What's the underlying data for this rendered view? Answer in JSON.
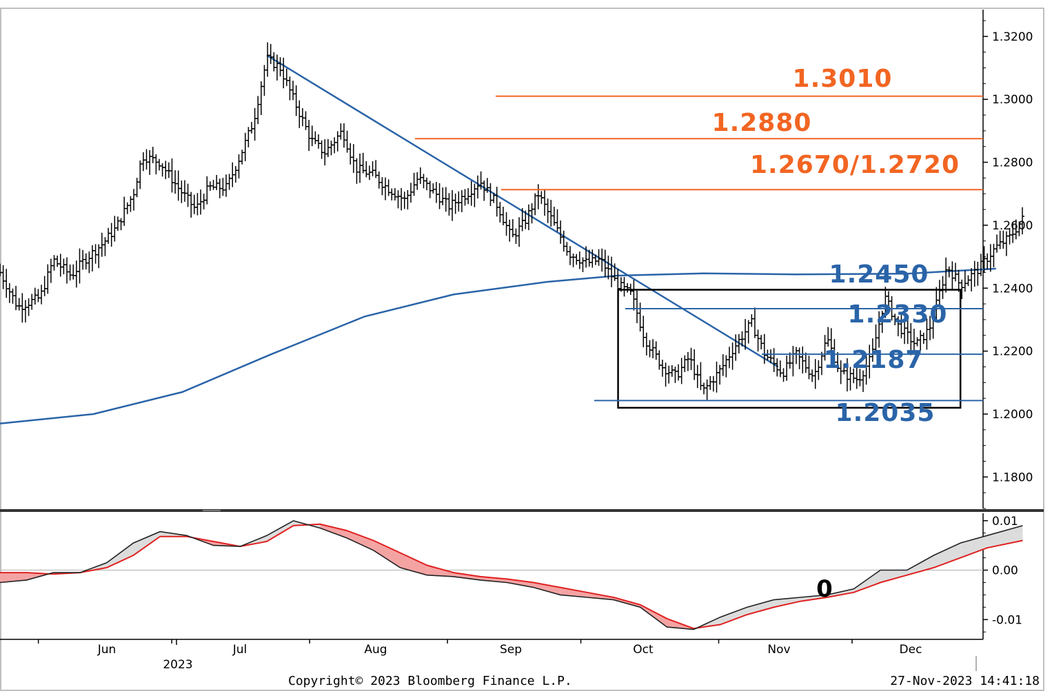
{
  "chart_data": [
    {
      "type": "ohlc",
      "title": "",
      "ylim": [
        1.17,
        1.3285
      ],
      "y_ticks": [
        "1.3200",
        "1.3000",
        "1.2800",
        "1.2600",
        "1.2400",
        "1.2200",
        "1.2000",
        "1.1800"
      ],
      "x_tick_labels": [
        "Jun",
        "Jul",
        "Aug",
        "Sep",
        "Oct",
        "Nov",
        "Dec"
      ],
      "year_label": "2023",
      "close_path": [
        [
          "2023-05-15",
          1.245
        ],
        [
          "2023-05-19",
          1.234
        ],
        [
          "2023-05-24",
          1.237
        ],
        [
          "2023-05-27",
          1.249
        ],
        [
          "2023-05-31",
          1.244
        ],
        [
          "2023-06-03",
          1.249
        ],
        [
          "2023-06-07",
          1.254
        ],
        [
          "2023-06-10",
          1.259
        ],
        [
          "2023-06-14",
          1.27
        ],
        [
          "2023-06-16",
          1.282
        ],
        [
          "2023-06-20",
          1.28
        ],
        [
          "2023-06-24",
          1.272
        ],
        [
          "2023-06-28",
          1.265
        ],
        [
          "2023-07-01",
          1.272
        ],
        [
          "2023-07-05",
          1.272
        ],
        [
          "2023-07-08",
          1.282
        ],
        [
          "2023-07-11",
          1.293
        ],
        [
          "2023-07-14",
          1.313
        ],
        [
          "2023-07-17",
          1.31
        ],
        [
          "2023-07-20",
          1.3
        ],
        [
          "2023-07-24",
          1.287
        ],
        [
          "2023-07-27",
          1.283
        ],
        [
          "2023-07-31",
          1.29
        ],
        [
          "2023-08-03",
          1.278
        ],
        [
          "2023-08-07",
          1.276
        ],
        [
          "2023-08-10",
          1.272
        ],
        [
          "2023-08-14",
          1.268
        ],
        [
          "2023-08-17",
          1.275
        ],
        [
          "2023-08-21",
          1.27
        ],
        [
          "2023-08-24",
          1.266
        ],
        [
          "2023-08-28",
          1.27
        ],
        [
          "2023-08-31",
          1.274
        ],
        [
          "2023-09-04",
          1.266
        ],
        [
          "2023-09-07",
          1.256
        ],
        [
          "2023-09-10",
          1.261
        ],
        [
          "2023-09-13",
          1.27
        ],
        [
          "2023-09-16",
          1.262
        ],
        [
          "2023-09-20",
          1.251
        ],
        [
          "2023-09-24",
          1.248
        ],
        [
          "2023-09-27",
          1.249
        ],
        [
          "2023-10-01",
          1.241
        ],
        [
          "2023-10-04",
          1.238
        ],
        [
          "2023-10-07",
          1.224
        ],
        [
          "2023-10-11",
          1.215
        ],
        [
          "2023-10-14",
          1.212
        ],
        [
          "2023-10-17",
          1.218
        ],
        [
          "2023-10-20",
          1.207
        ],
        [
          "2023-10-24",
          1.214
        ],
        [
          "2023-10-27",
          1.221
        ],
        [
          "2023-10-31",
          1.229
        ],
        [
          "2023-11-03",
          1.219
        ],
        [
          "2023-11-07",
          1.213
        ],
        [
          "2023-11-10",
          1.219
        ],
        [
          "2023-11-14",
          1.212
        ],
        [
          "2023-11-17",
          1.224
        ],
        [
          "2023-11-20",
          1.213
        ],
        [
          "2023-11-24",
          1.211
        ],
        [
          "2023-11-27",
          1.218
        ],
        [
          "2023-11-30",
          1.237
        ],
        [
          "2023-12-03",
          1.228
        ],
        [
          "2023-12-07",
          1.222
        ],
        [
          "2023-12-10",
          1.227
        ],
        [
          "2023-12-14",
          1.247
        ],
        [
          "2023-12-17",
          1.241
        ],
        [
          "2023-12-21",
          1.246
        ],
        [
          "2023-12-25",
          1.253
        ],
        [
          "2023-12-28",
          1.256
        ],
        [
          "2023-12-31",
          1.262
        ]
      ],
      "moving_average": [
        [
          "2023-05-15",
          1.197
        ],
        [
          "2023-06-05",
          1.2
        ],
        [
          "2023-06-25",
          1.207
        ],
        [
          "2023-07-15",
          1.219
        ],
        [
          "2023-08-05",
          1.231
        ],
        [
          "2023-08-25",
          1.238
        ],
        [
          "2023-09-15",
          1.242
        ],
        [
          "2023-10-01",
          1.244
        ],
        [
          "2023-10-20",
          1.2447
        ],
        [
          "2023-11-10",
          1.2444
        ],
        [
          "2023-12-05",
          1.2446
        ],
        [
          "2023-12-25",
          1.2462
        ]
      ],
      "downtrend_line": [
        [
          "2023-07-14",
          1.314
        ],
        [
          "2023-11-06",
          1.215
        ]
      ],
      "range_box": {
        "from": "2023-10-01",
        "to": "2023-12-17",
        "low": 1.202,
        "high": 1.2395
      },
      "levels": [
        {
          "label": "1.3010",
          "value": 1.301,
          "color": "#f26522"
        },
        {
          "label": "1.2880",
          "value": 1.2875,
          "color": "#f26522"
        },
        {
          "label": "1.2670/1.2720",
          "value": 1.2713,
          "color": "#f26522"
        },
        {
          "label": "1.2450",
          "value": 1.245,
          "color": "#2a64a8"
        },
        {
          "label": "1.2330",
          "value": 1.2335,
          "color": "#2a64a8"
        },
        {
          "label": "1.2187",
          "value": 1.219,
          "color": "#2a64a8"
        },
        {
          "label": "1.2035",
          "value": 1.2043,
          "color": "#2a64a8"
        }
      ]
    },
    {
      "type": "area",
      "ylim": [
        -0.014,
        0.0115
      ],
      "y_ticks": [
        "0.01",
        "0.00",
        "-0.01"
      ],
      "zero_label": "0",
      "series": [
        {
          "values": [
            [
              "2023-05-15",
              -0.0025
            ],
            [
              "2023-05-21",
              -0.002
            ],
            [
              "2023-05-27",
              -0.0005
            ],
            [
              "2023-06-02",
              -0.0005
            ],
            [
              "2023-06-08",
              0.0015
            ],
            [
              "2023-06-14",
              0.0055
            ],
            [
              "2023-06-20",
              0.0078
            ],
            [
              "2023-06-26",
              0.007
            ],
            [
              "2023-07-02",
              0.005
            ],
            [
              "2023-07-08",
              0.0048
            ],
            [
              "2023-07-14",
              0.007
            ],
            [
              "2023-07-20",
              0.01
            ],
            [
              "2023-07-26",
              0.0085
            ],
            [
              "2023-08-01",
              0.0065
            ],
            [
              "2023-08-07",
              0.004
            ],
            [
              "2023-08-13",
              0.0005
            ],
            [
              "2023-08-19",
              -0.001
            ],
            [
              "2023-08-25",
              -0.0013
            ],
            [
              "2023-08-31",
              -0.002
            ],
            [
              "2023-09-06",
              -0.0025
            ],
            [
              "2023-09-12",
              -0.0035
            ],
            [
              "2023-09-18",
              -0.005
            ],
            [
              "2023-09-24",
              -0.0055
            ],
            [
              "2023-09-30",
              -0.006
            ],
            [
              "2023-10-06",
              -0.0075
            ],
            [
              "2023-10-12",
              -0.0115
            ],
            [
              "2023-10-18",
              -0.012
            ],
            [
              "2023-10-24",
              -0.0095
            ],
            [
              "2023-10-30",
              -0.0075
            ],
            [
              "2023-11-05",
              -0.006
            ],
            [
              "2023-11-11",
              -0.0055
            ],
            [
              "2023-11-17",
              -0.005
            ],
            [
              "2023-11-23",
              -0.0038
            ],
            [
              "2023-11-29",
              0.0
            ],
            [
              "2023-12-05",
              0.0
            ],
            [
              "2023-12-11",
              0.003
            ],
            [
              "2023-12-17",
              0.0055
            ],
            [
              "2023-12-23",
              0.007
            ],
            [
              "2023-12-31",
              0.009
            ]
          ]
        },
        {
          "values": [
            [
              "2023-05-15",
              -0.0005
            ],
            [
              "2023-05-21",
              -0.0005
            ],
            [
              "2023-05-27",
              -0.0008
            ],
            [
              "2023-06-02",
              -0.0005
            ],
            [
              "2023-06-08",
              0.0005
            ],
            [
              "2023-06-14",
              0.003
            ],
            [
              "2023-06-20",
              0.0068
            ],
            [
              "2023-06-26",
              0.0068
            ],
            [
              "2023-07-02",
              0.0058
            ],
            [
              "2023-07-08",
              0.0048
            ],
            [
              "2023-07-14",
              0.0058
            ],
            [
              "2023-07-20",
              0.009
            ],
            [
              "2023-07-26",
              0.0093
            ],
            [
              "2023-08-01",
              0.008
            ],
            [
              "2023-08-07",
              0.006
            ],
            [
              "2023-08-13",
              0.0035
            ],
            [
              "2023-08-19",
              0.001
            ],
            [
              "2023-08-25",
              -0.0005
            ],
            [
              "2023-08-31",
              -0.0013
            ],
            [
              "2023-09-06",
              -0.0018
            ],
            [
              "2023-09-12",
              -0.0025
            ],
            [
              "2023-09-18",
              -0.0035
            ],
            [
              "2023-09-24",
              -0.0045
            ],
            [
              "2023-09-30",
              -0.0055
            ],
            [
              "2023-10-06",
              -0.007
            ],
            [
              "2023-10-12",
              -0.0098
            ],
            [
              "2023-10-18",
              -0.0118
            ],
            [
              "2023-10-24",
              -0.011
            ],
            [
              "2023-10-30",
              -0.009
            ],
            [
              "2023-11-05",
              -0.0075
            ],
            [
              "2023-11-11",
              -0.0063
            ],
            [
              "2023-11-17",
              -0.0055
            ],
            [
              "2023-11-23",
              -0.0045
            ],
            [
              "2023-11-29",
              -0.0025
            ],
            [
              "2023-12-05",
              -0.001
            ],
            [
              "2023-12-11",
              0.0005
            ],
            [
              "2023-12-17",
              0.0025
            ],
            [
              "2023-12-23",
              0.0045
            ],
            [
              "2023-12-31",
              0.006
            ]
          ]
        }
      ]
    }
  ],
  "footer": {
    "copyright": "Copyright© 2023 Bloomberg Finance L.P.",
    "timestamp": "27-Nov-2023 14:41:18"
  }
}
